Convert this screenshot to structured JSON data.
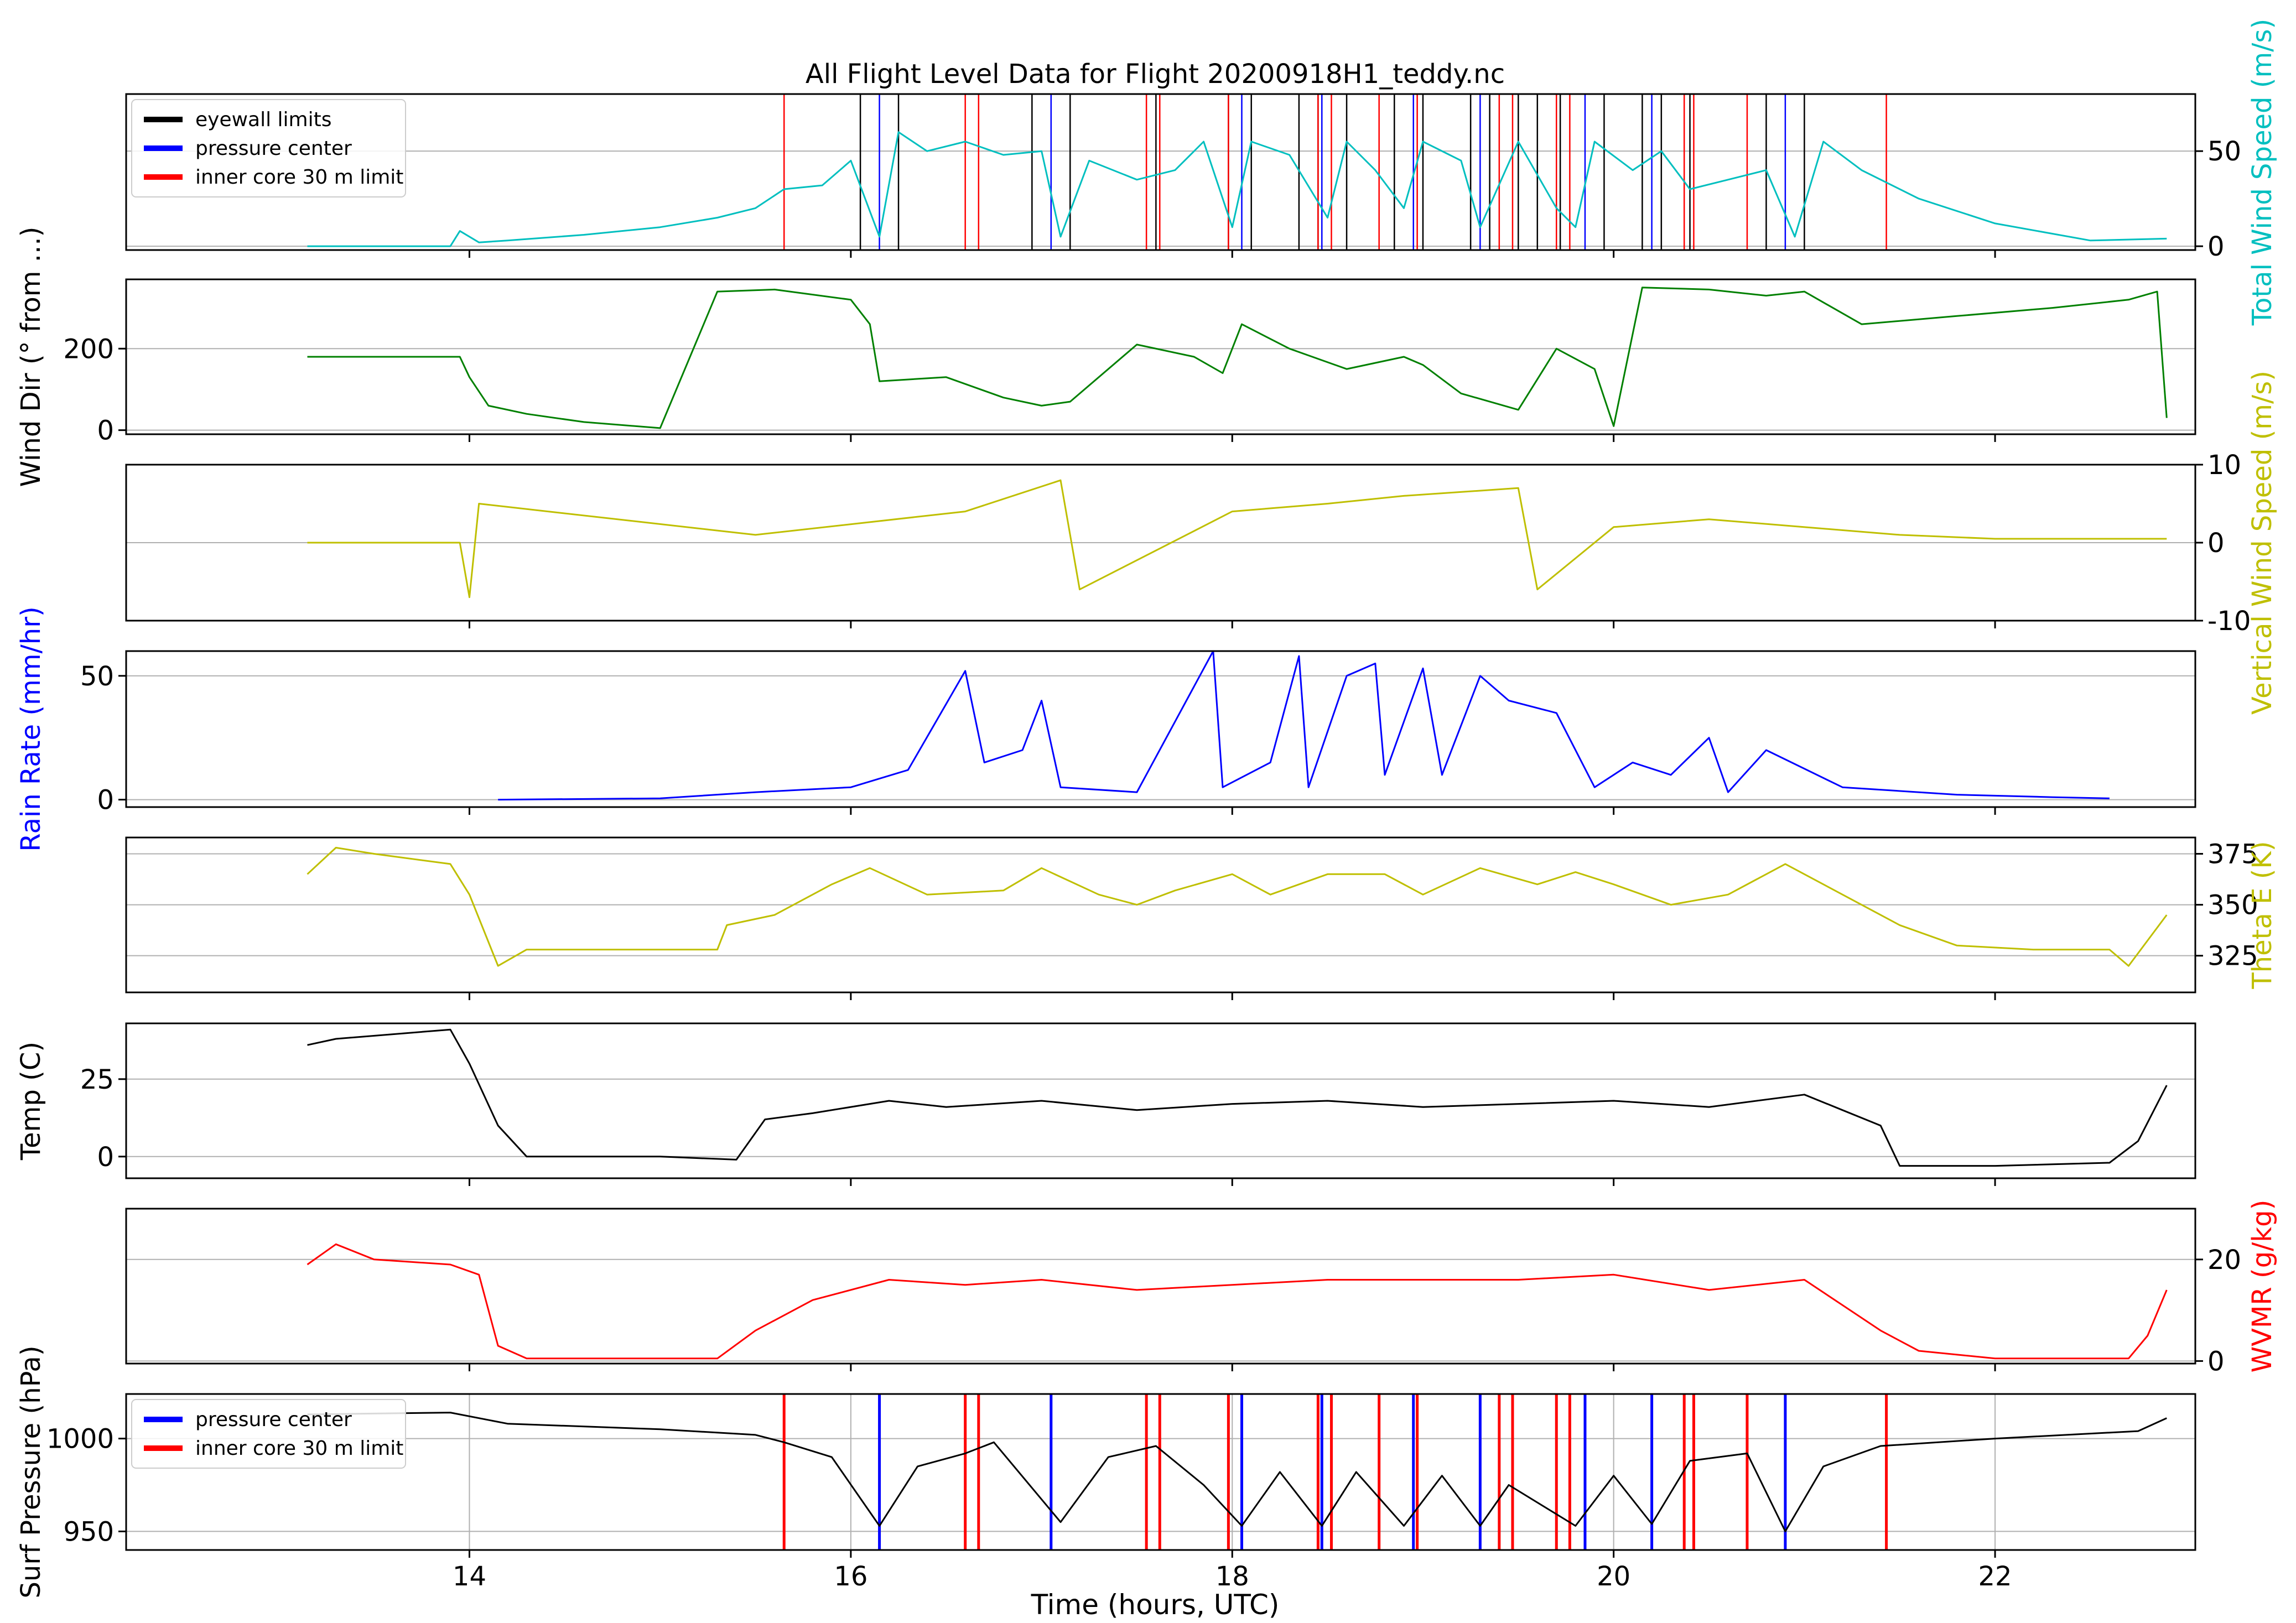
{
  "figure": {
    "title": "All Flight Level Data for Flight 20200918H1_teddy.nc",
    "xlabel": "Time (hours, UTC)",
    "x_ticks": [
      14,
      16,
      18,
      20,
      22
    ],
    "x_range": [
      12.2,
      23.05
    ],
    "colors": {
      "grid": "#b0b0b0",
      "axes": "#000000"
    }
  },
  "legend_top": [
    {
      "label": "eyewall limits",
      "color": "#000000"
    },
    {
      "label": "pressure center",
      "color": "#0000ff"
    },
    {
      "label": "inner core 30 m limit",
      "color": "#ff0000"
    }
  ],
  "legend_bottom": [
    {
      "label": "pressure center",
      "color": "#0000ff"
    },
    {
      "label": "inner core 30 m limit",
      "color": "#ff0000"
    }
  ],
  "chart_data": [
    {
      "type": "line",
      "key": "wind_speed",
      "ylabel": "Total Wind Speed (m/s)",
      "ylabel_parts": [
        {
          "text": "Total ",
          "color": "#00bfbf"
        },
        {
          "text": "Wind Speed",
          "color": "#00bfbf"
        },
        {
          "text": " (m/s)",
          "color": "#00bfbf"
        }
      ],
      "ylabel_side": "right",
      "color": "#00bfbf",
      "ylim": [
        -2,
        80
      ],
      "yticks": [
        0,
        50
      ],
      "grid": true,
      "x": [
        13.15,
        13.9,
        13.95,
        14.05,
        14.2,
        14.6,
        15.0,
        15.3,
        15.5,
        15.65,
        15.85,
        16.0,
        16.15,
        16.25,
        16.4,
        16.6,
        16.8,
        17.0,
        17.1,
        17.25,
        17.5,
        17.7,
        17.85,
        18.0,
        18.1,
        18.3,
        18.5,
        18.6,
        18.75,
        18.9,
        19.0,
        19.2,
        19.3,
        19.5,
        19.7,
        19.8,
        19.9,
        20.1,
        20.25,
        20.4,
        20.6,
        20.8,
        20.95,
        21.1,
        21.3,
        21.6,
        22.0,
        22.5,
        22.9
      ],
      "y": [
        0,
        0,
        8,
        2,
        3,
        6,
        10,
        15,
        20,
        30,
        32,
        45,
        5,
        60,
        50,
        55,
        48,
        50,
        5,
        45,
        35,
        40,
        55,
        10,
        55,
        48,
        15,
        55,
        40,
        20,
        55,
        45,
        10,
        55,
        20,
        10,
        55,
        40,
        50,
        30,
        35,
        40,
        5,
        55,
        40,
        25,
        12,
        3,
        4
      ]
    },
    {
      "type": "line",
      "key": "wind_dir",
      "ylabel": "Wind Dir (° from ...)",
      "ylabel_parts": [
        {
          "text": "Wind Dir (° from ...)",
          "color": "#000000"
        }
      ],
      "ylabel_side": "left",
      "color": "#008000",
      "ylim": [
        -10,
        370
      ],
      "yticks": [
        0,
        200
      ],
      "grid": true,
      "x": [
        13.15,
        13.95,
        14.0,
        14.1,
        14.3,
        14.6,
        15.0,
        15.3,
        15.6,
        16.0,
        16.1,
        16.15,
        16.5,
        16.8,
        17.0,
        17.15,
        17.5,
        17.8,
        17.95,
        18.05,
        18.3,
        18.6,
        18.9,
        19.0,
        19.2,
        19.5,
        19.7,
        19.9,
        20.0,
        20.15,
        20.5,
        20.8,
        21.0,
        21.3,
        21.8,
        22.3,
        22.7,
        22.85,
        22.9
      ],
      "y": [
        180,
        180,
        130,
        60,
        40,
        20,
        5,
        340,
        345,
        320,
        260,
        120,
        130,
        80,
        60,
        70,
        210,
        180,
        140,
        260,
        200,
        150,
        180,
        160,
        90,
        50,
        200,
        150,
        10,
        350,
        345,
        330,
        340,
        260,
        280,
        300,
        320,
        340,
        30
      ]
    },
    {
      "type": "line",
      "key": "vertical_wind",
      "ylabel": "Vertical Wind Speed (m/s)",
      "ylabel_parts": [
        {
          "text": "Vertical Wind Speed (m/s)",
          "color": "#bfbf00"
        }
      ],
      "ylabel_side": "right",
      "color": "#bfbf00",
      "ylim": [
        -10,
        10
      ],
      "yticks": [
        -10,
        0,
        10
      ],
      "grid": true,
      "x": [
        13.15,
        13.95,
        14.0,
        14.05,
        15.5,
        16.6,
        17.1,
        17.2,
        18.0,
        18.5,
        18.9,
        19.5,
        19.6,
        20.0,
        20.5,
        21.5,
        22.0,
        22.9
      ],
      "y": [
        0,
        0,
        -7,
        5,
        1,
        4,
        8,
        -6,
        4,
        5,
        6,
        7,
        -6,
        2,
        3,
        1,
        0.5,
        0.5
      ]
    },
    {
      "type": "line",
      "key": "rain_rate",
      "ylabel": "Rain Rate (mm/hr)",
      "ylabel_parts": [
        {
          "text": "Rain Rate (mm/hr)",
          "color": "#0000ff"
        }
      ],
      "ylabel_side": "left",
      "color": "#0000ff",
      "ylim": [
        -3,
        60
      ],
      "yticks": [
        0,
        50
      ],
      "grid": true,
      "x": [
        14.15,
        15.0,
        15.5,
        16.0,
        16.3,
        16.6,
        16.7,
        16.9,
        17.0,
        17.1,
        17.5,
        17.9,
        17.95,
        18.2,
        18.35,
        18.4,
        18.6,
        18.75,
        18.8,
        19.0,
        19.1,
        19.3,
        19.45,
        19.7,
        19.9,
        20.1,
        20.3,
        20.5,
        20.6,
        20.8,
        21.2,
        21.8,
        22.3,
        22.6
      ],
      "y": [
        0,
        0.5,
        3,
        5,
        12,
        52,
        15,
        20,
        40,
        5,
        3,
        60,
        5,
        15,
        58,
        5,
        50,
        55,
        10,
        53,
        10,
        50,
        40,
        35,
        5,
        15,
        10,
        25,
        3,
        20,
        5,
        2,
        1,
        0.5
      ]
    },
    {
      "type": "line",
      "key": "theta_e",
      "ylabel": "Theta E (K)",
      "ylabel_parts": [
        {
          "text": "Theta E (K)",
          "color": "#bfbf00"
        }
      ],
      "ylabel_side": "right",
      "color": "#bfbf00",
      "ylim": [
        307,
        383
      ],
      "yticks": [
        325,
        350,
        375
      ],
      "grid": true,
      "x": [
        13.15,
        13.3,
        13.5,
        13.9,
        14.0,
        14.15,
        14.3,
        15.0,
        15.3,
        15.35,
        15.6,
        15.9,
        16.1,
        16.4,
        16.8,
        17.0,
        17.3,
        17.5,
        17.7,
        18.0,
        18.2,
        18.5,
        18.8,
        19.0,
        19.3,
        19.6,
        19.8,
        20.0,
        20.3,
        20.6,
        20.9,
        21.2,
        21.5,
        21.8,
        22.2,
        22.6,
        22.7,
        22.9
      ],
      "y": [
        365,
        378,
        375,
        370,
        355,
        320,
        328,
        328,
        328,
        340,
        345,
        360,
        368,
        355,
        357,
        368,
        355,
        350,
        357,
        365,
        355,
        365,
        365,
        355,
        368,
        360,
        366,
        360,
        350,
        355,
        370,
        355,
        340,
        330,
        328,
        328,
        320,
        345
      ]
    },
    {
      "type": "line",
      "key": "temp",
      "ylabel": "Temp (C)",
      "ylabel_parts": [
        {
          "text": "Temp (C)",
          "color": "#000000"
        }
      ],
      "ylabel_side": "left",
      "color": "#000000",
      "ylim": [
        -7,
        43
      ],
      "yticks": [
        0,
        25
      ],
      "grid": true,
      "x": [
        13.15,
        13.3,
        13.9,
        14.0,
        14.15,
        14.3,
        15.0,
        15.4,
        15.55,
        15.8,
        16.2,
        16.5,
        17.0,
        17.5,
        18.0,
        18.5,
        19.0,
        19.5,
        20.0,
        20.5,
        21.0,
        21.2,
        21.4,
        21.5,
        22.0,
        22.6,
        22.75,
        22.9
      ],
      "y": [
        36,
        38,
        41,
        30,
        10,
        0,
        0,
        -1,
        12,
        14,
        18,
        16,
        18,
        15,
        17,
        18,
        16,
        17,
        18,
        16,
        20,
        15,
        10,
        -3,
        -3,
        -2,
        5,
        23
      ]
    },
    {
      "type": "line",
      "key": "wvmr",
      "ylabel": "WVMR (g/kg)",
      "ylabel_parts": [
        {
          "text": "WVMR (g/kg)",
          "color": "#ff0000"
        }
      ],
      "ylabel_side": "right",
      "color": "#ff0000",
      "ylim": [
        -0.5,
        30
      ],
      "yticks": [
        0,
        20
      ],
      "grid": true,
      "x": [
        13.15,
        13.3,
        13.5,
        13.9,
        14.05,
        14.15,
        14.3,
        15.3,
        15.5,
        15.8,
        16.2,
        16.6,
        17.0,
        17.5,
        18.0,
        18.5,
        19.0,
        19.5,
        20.0,
        20.5,
        21.0,
        21.2,
        21.4,
        21.6,
        22.0,
        22.7,
        22.8,
        22.9
      ],
      "y": [
        19,
        23,
        20,
        19,
        17,
        3,
        0.5,
        0.5,
        6,
        12,
        16,
        15,
        16,
        14,
        15,
        16,
        16,
        16,
        17,
        14,
        16,
        11,
        6,
        2,
        0.5,
        0.5,
        5,
        14
      ]
    },
    {
      "type": "line",
      "key": "surf_pressure",
      "ylabel": "Surf Pressure (hPa)",
      "ylabel_parts": [
        {
          "text": "Surf Pressure (hPa)",
          "color": "#000000"
        }
      ],
      "ylabel_side": "left",
      "color": "#000000",
      "ylim": [
        940,
        1024
      ],
      "yticks": [
        950,
        1000
      ],
      "grid": true,
      "x": [
        13.15,
        13.9,
        14.2,
        15.0,
        15.5,
        15.65,
        15.9,
        16.15,
        16.35,
        16.6,
        16.75,
        17.1,
        17.35,
        17.6,
        17.85,
        18.05,
        18.25,
        18.47,
        18.65,
        18.9,
        19.1,
        19.3,
        19.45,
        19.8,
        20.0,
        20.2,
        20.4,
        20.7,
        20.9,
        21.1,
        21.4,
        22.0,
        22.75,
        22.9
      ],
      "y": [
        1013,
        1014,
        1008,
        1005,
        1002,
        998,
        990,
        953,
        985,
        992,
        998,
        955,
        990,
        996,
        975,
        953,
        982,
        953,
        982,
        953,
        980,
        953,
        975,
        953,
        980,
        954,
        988,
        992,
        950,
        985,
        996,
        1000,
        1004,
        1011
      ]
    }
  ],
  "markers": {
    "eyewall_limits": [
      16.05,
      16.25,
      16.95,
      17.15,
      17.6,
      17.98,
      18.1,
      18.35,
      18.45,
      18.6,
      18.85,
      19.0,
      19.25,
      19.35,
      19.5,
      19.6,
      19.72,
      19.95,
      20.15,
      20.25,
      20.4,
      20.8,
      21.0
    ],
    "pressure_center": [
      16.15,
      17.05,
      18.05,
      18.47,
      18.95,
      19.3,
      19.85,
      20.2,
      20.9
    ],
    "inner_core_limit": [
      15.65,
      16.6,
      16.67,
      17.55,
      17.62,
      17.98,
      18.45,
      18.52,
      18.77,
      18.97,
      19.4,
      19.47,
      19.7,
      19.77,
      20.37,
      20.42,
      20.7,
      21.43
    ]
  }
}
